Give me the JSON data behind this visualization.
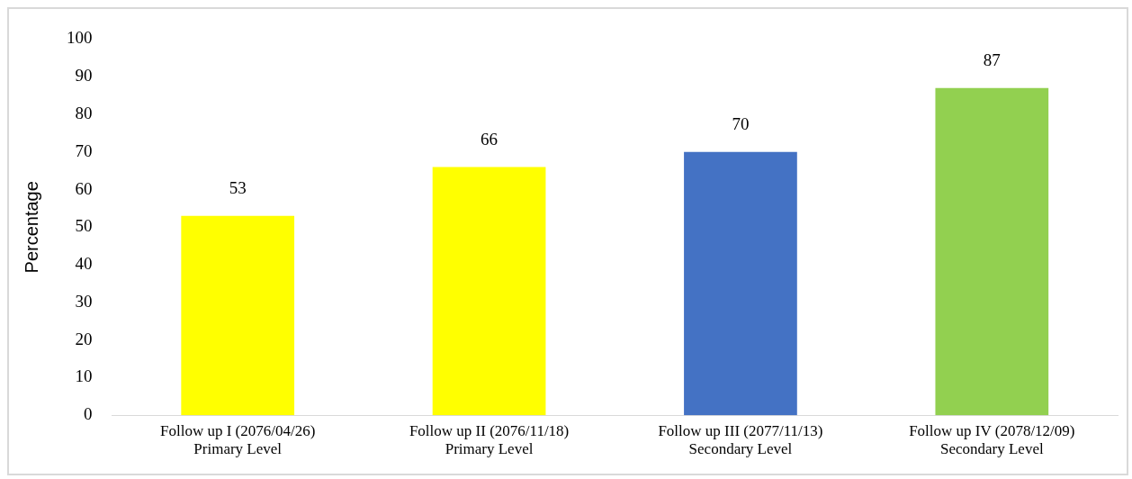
{
  "chart_data": {
    "type": "bar",
    "ylabel": "Percentage",
    "categories": [
      "Follow up I (2076/04/26)\nPrimary Level",
      "Follow up II (2076/11/18)\nPrimary Level",
      "Follow up III (2077/11/13)\nSecondary Level",
      "Follow up IV (2078/12/09)\nSecondary Level"
    ],
    "values": [
      53,
      66,
      70,
      87
    ],
    "colors": [
      "#ffff00",
      "#ffff00",
      "#4472c4",
      "#92d050"
    ],
    "ylim": [
      0,
      100
    ],
    "yticks": [
      0,
      10,
      20,
      30,
      40,
      50,
      60,
      70,
      80,
      90,
      100
    ],
    "grid": false,
    "legend": false,
    "data_labels": true
  }
}
